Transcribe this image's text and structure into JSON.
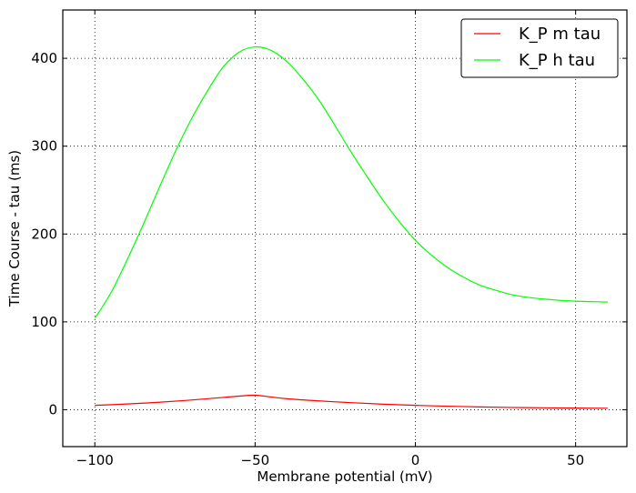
{
  "chart_data": {
    "type": "line",
    "title": "",
    "xlabel": "Membrane potential (mV)",
    "ylabel": "Time Course - tau (ms)",
    "xlim": [
      -110,
      66
    ],
    "ylim": [
      -42,
      455
    ],
    "xticks": [
      -100,
      -50,
      0,
      50
    ],
    "yticks": [
      0,
      100,
      200,
      300,
      400
    ],
    "xtick_labels": [
      "−100",
      "−50",
      "0",
      "50"
    ],
    "ytick_labels": [
      "0",
      "100",
      "200",
      "300",
      "400"
    ],
    "grid": true,
    "legend_position": "top-right",
    "series": [
      {
        "name": "K_P m tau",
        "color": "#ff0000",
        "x": [
          -100,
          -90,
          -80,
          -70,
          -60,
          -55,
          -50,
          -45,
          -40,
          -30,
          -20,
          -10,
          0,
          10,
          20,
          30,
          40,
          50,
          60
        ],
        "y": [
          5,
          6.5,
          8.5,
          11,
          14,
          15.5,
          16.5,
          14.5,
          12.5,
          10,
          8,
          6.3,
          5,
          4,
          3.2,
          2.6,
          2.2,
          1.9,
          1.7
        ]
      },
      {
        "name": "K_P h tau",
        "color": "#00ff00",
        "x": [
          -100,
          -95,
          -90,
          -85,
          -80,
          -75,
          -70,
          -65,
          -60,
          -55,
          -50,
          -45,
          -40,
          -35,
          -30,
          -25,
          -20,
          -15,
          -10,
          -5,
          0,
          5,
          10,
          15,
          20,
          25,
          30,
          35,
          40,
          45,
          50,
          55,
          60
        ],
        "y": [
          104,
          133,
          170,
          210,
          252,
          293,
          330,
          362,
          390,
          407,
          413,
          409,
          396,
          376,
          352,
          323,
          293,
          265,
          238,
          214,
          193,
          176,
          162,
          151,
          142,
          136,
          131,
          128,
          126,
          124.5,
          123.5,
          123,
          122.5
        ]
      }
    ]
  }
}
